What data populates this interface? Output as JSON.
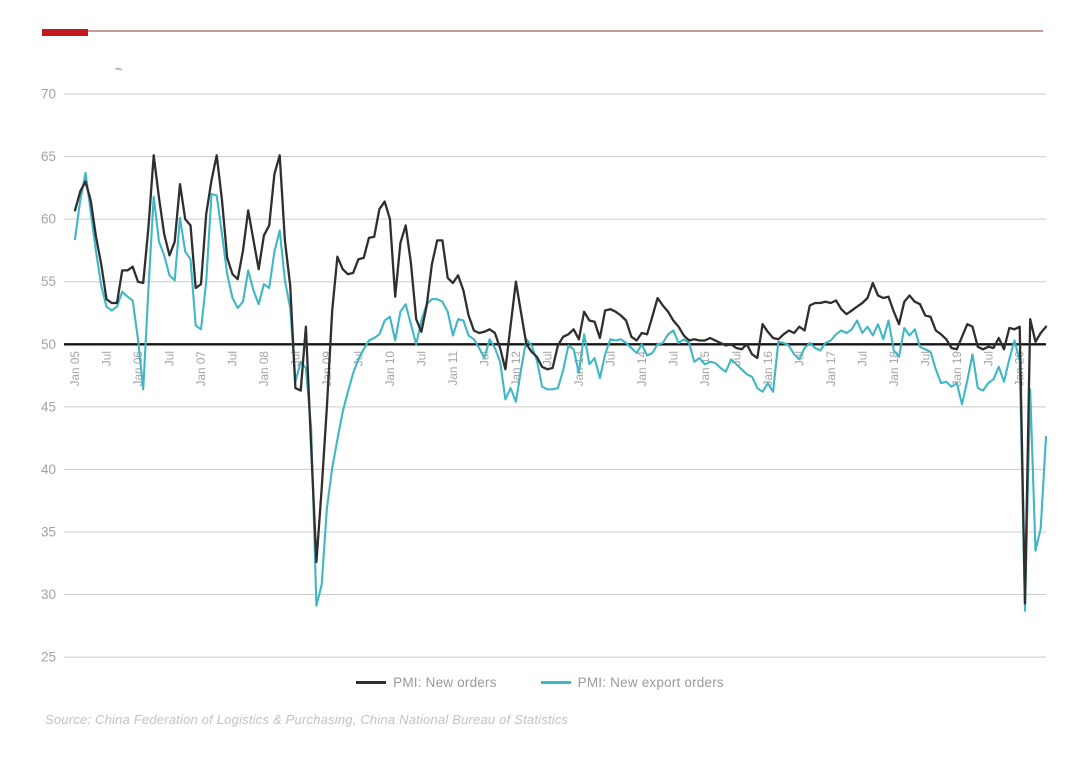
{
  "accent": {
    "bar_color": "#c2191f",
    "rule_color": "#c89c9c"
  },
  "source_note": "Source: China Federation of Logistics & Purchasing, China National Bureau of Statistics",
  "chart_data": {
    "type": "line",
    "title": "",
    "xlabel": "",
    "ylabel": "",
    "frequency": "monthly",
    "x_range": [
      "Jan 2005",
      "Jun 2020"
    ],
    "ylim": [
      25,
      70
    ],
    "grid": true,
    "baseline": 50,
    "legend_position": "bottom-center",
    "y_ticks": [
      70,
      65,
      60,
      55,
      50,
      45,
      40,
      35,
      30,
      25
    ],
    "axis_colors": {
      "grid": "#cccccc",
      "baseline": "#141414",
      "tick_text": "#a3a3a3"
    },
    "x_ticks": [
      {
        "m": 0,
        "label": "Jan 05"
      },
      {
        "m": 6,
        "label": "Jul"
      },
      {
        "m": 12,
        "label": "Jan 06"
      },
      {
        "m": 18,
        "label": "Jul"
      },
      {
        "m": 24,
        "label": "Jan 07"
      },
      {
        "m": 30,
        "label": "Jul"
      },
      {
        "m": 36,
        "label": "Jan 08"
      },
      {
        "m": 42,
        "label": "Jul"
      },
      {
        "m": 48,
        "label": "Jan 09"
      },
      {
        "m": 54,
        "label": "Jul"
      },
      {
        "m": 60,
        "label": "Jan 10"
      },
      {
        "m": 66,
        "label": "Jul"
      },
      {
        "m": 72,
        "label": "Jan 11"
      },
      {
        "m": 78,
        "label": "Jul"
      },
      {
        "m": 84,
        "label": "Jan 12"
      },
      {
        "m": 90,
        "label": "Jul"
      },
      {
        "m": 96,
        "label": "Jan 13"
      },
      {
        "m": 102,
        "label": "Jul"
      },
      {
        "m": 108,
        "label": "Jan 14"
      },
      {
        "m": 114,
        "label": "Jul"
      },
      {
        "m": 120,
        "label": "Jan 15"
      },
      {
        "m": 126,
        "label": "Jul"
      },
      {
        "m": 132,
        "label": "Jan 16"
      },
      {
        "m": 138,
        "label": "Jul"
      },
      {
        "m": 144,
        "label": "Jan 17"
      },
      {
        "m": 150,
        "label": "Jul"
      },
      {
        "m": 156,
        "label": "Jan 18"
      },
      {
        "m": 162,
        "label": "Jul"
      },
      {
        "m": 168,
        "label": "Jan 19"
      },
      {
        "m": 174,
        "label": "Jul"
      },
      {
        "m": 180,
        "label": "Jan 20"
      }
    ],
    "series": [
      {
        "name": "PMI: New orders",
        "color": "#2f2f2f",
        "start": "2005-01",
        "values": [
          60.7,
          62.2,
          63.0,
          61.5,
          58.6,
          56.4,
          53.6,
          53.3,
          53.3,
          55.9,
          55.9,
          56.2,
          55.0,
          54.9,
          59.4,
          65.1,
          61.7,
          58.8,
          57.1,
          58.2,
          62.8,
          60.0,
          59.5,
          54.5,
          54.8,
          60.4,
          63.1,
          65.1,
          61.5,
          56.9,
          55.6,
          55.2,
          57.5,
          60.7,
          58.3,
          56.0,
          58.7,
          59.5,
          63.6,
          65.1,
          58.3,
          54.7,
          46.5,
          46.3,
          51.4,
          41.7,
          32.6,
          38.5,
          45.0,
          52.7,
          57.0,
          56.0,
          55.6,
          55.7,
          56.8,
          56.9,
          58.5,
          58.6,
          60.8,
          61.4,
          60.0,
          53.8,
          58.1,
          59.5,
          56.5,
          52.0,
          51.0,
          53.1,
          56.4,
          58.3,
          58.3,
          55.3,
          54.9,
          55.5,
          54.3,
          52.3,
          51.1,
          50.9,
          51.0,
          51.2,
          50.9,
          49.7,
          48.0,
          51.5,
          55.0,
          52.5,
          50.0,
          49.4,
          49.0,
          48.2,
          48.0,
          48.1,
          49.9,
          50.6,
          50.8,
          51.2,
          50.4,
          52.6,
          51.9,
          51.8,
          50.5,
          52.7,
          52.8,
          52.6,
          52.3,
          51.9,
          50.6,
          50.3,
          50.9,
          50.8,
          52.2,
          53.7,
          53.1,
          52.6,
          51.9,
          51.4,
          50.7,
          50.3,
          50.4,
          50.3,
          50.3,
          50.5,
          50.3,
          50.1,
          49.9,
          50.0,
          49.7,
          49.6,
          50.0,
          49.2,
          48.9,
          51.6,
          51.0,
          50.5,
          50.4,
          50.8,
          51.1,
          50.9,
          51.4,
          51.1,
          53.1,
          53.3,
          53.3,
          53.4,
          53.3,
          53.5,
          52.8,
          52.4,
          52.7,
          53.0,
          53.3,
          53.7,
          54.9,
          53.9,
          53.7,
          53.8,
          52.6,
          51.6,
          53.4,
          53.9,
          53.4,
          53.2,
          52.3,
          52.2,
          51.1,
          50.8,
          50.4,
          49.7,
          49.6,
          50.6,
          51.6,
          51.4,
          49.8,
          49.6,
          49.8,
          49.7,
          50.5,
          49.6,
          51.3,
          51.2,
          51.4,
          29.3,
          52.0,
          50.2,
          50.9,
          51.4
        ]
      },
      {
        "name": "PMI: New export orders",
        "color": "#3fb7c4",
        "start": "2005-01",
        "values": [
          58.4,
          61.5,
          63.7,
          60.6,
          57.4,
          54.7,
          53.0,
          52.7,
          53.0,
          54.2,
          53.8,
          53.5,
          50.4,
          46.4,
          54.5,
          61.8,
          58.2,
          57.1,
          55.5,
          55.1,
          60.1,
          57.4,
          56.8,
          51.5,
          51.2,
          55.0,
          62.0,
          61.9,
          58.8,
          55.6,
          53.7,
          52.9,
          53.4,
          55.9,
          54.3,
          53.2,
          54.8,
          54.5,
          57.4,
          59.1,
          55.1,
          52.9,
          47.0,
          48.6,
          48.1,
          43.2,
          29.1,
          30.8,
          36.9,
          40.1,
          42.4,
          44.6,
          46.2,
          47.7,
          48.8,
          49.6,
          50.3,
          50.5,
          50.8,
          51.9,
          52.2,
          50.3,
          52.6,
          53.2,
          51.6,
          50.0,
          51.9,
          53.2,
          53.6,
          53.6,
          53.4,
          52.6,
          50.7,
          52.0,
          51.9,
          50.7,
          50.4,
          49.7,
          48.9,
          50.4,
          49.7,
          48.6,
          45.6,
          46.5,
          45.4,
          48.0,
          50.4,
          49.9,
          48.7,
          46.6,
          46.4,
          46.4,
          46.5,
          47.9,
          49.9,
          49.6,
          47.7,
          50.8,
          48.4,
          48.9,
          47.3,
          49.2,
          50.4,
          50.3,
          50.4,
          50.1,
          49.7,
          49.3,
          50.0,
          49.1,
          49.3,
          50.0,
          50.1,
          50.8,
          51.1,
          50.1,
          50.4,
          50.1,
          48.6,
          48.9,
          48.4,
          48.6,
          48.5,
          48.1,
          47.8,
          48.8,
          48.4,
          48.0,
          47.6,
          47.4,
          46.5,
          46.2,
          46.9,
          46.2,
          50.2,
          50.1,
          49.9,
          49.2,
          48.8,
          49.7,
          50.1,
          49.7,
          49.5,
          50.1,
          50.3,
          50.8,
          51.1,
          50.9,
          51.2,
          51.9,
          50.9,
          51.4,
          50.7,
          51.6,
          50.4,
          51.9,
          49.5,
          49.0,
          51.3,
          50.7,
          51.2,
          49.8,
          49.6,
          49.4,
          48.0,
          46.9,
          47.0,
          46.6,
          46.9,
          45.2,
          47.1,
          49.2,
          46.5,
          46.3,
          46.9,
          47.2,
          48.2,
          47.0,
          48.8,
          50.3,
          48.7,
          28.7,
          46.4,
          33.5,
          35.3,
          42.6
        ]
      }
    ]
  }
}
